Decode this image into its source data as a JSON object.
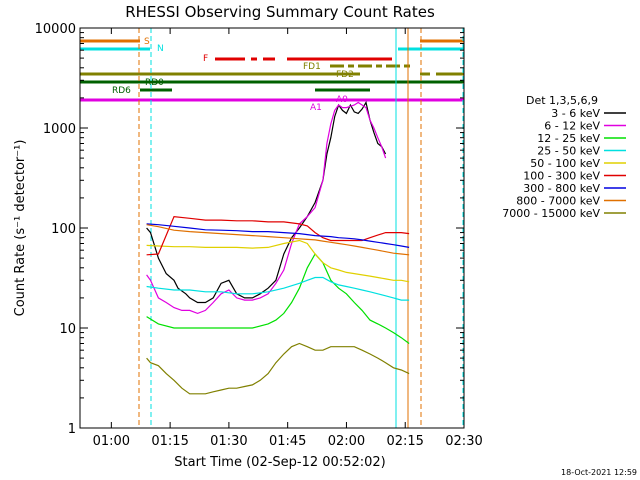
{
  "chart_data": {
    "type": "line",
    "title": "RHESSI Observing Summary Count Rates",
    "xlabel": "Start Time (02-Sep-12 00:52:02)",
    "ylabel": "Count Rate (s⁻¹ detector⁻¹)",
    "x_unit": "minutes after 00:52:02",
    "xlim": [
      0,
      98
    ],
    "ylim": [
      1,
      10000
    ],
    "yscale": "log",
    "x_ticks": [
      {
        "x": 8,
        "label": "01:00"
      },
      {
        "x": 23,
        "label": "01:15"
      },
      {
        "x": 38,
        "label": "01:30"
      },
      {
        "x": 53,
        "label": "01:45"
      },
      {
        "x": 68,
        "label": "02:00"
      },
      {
        "x": 83,
        "label": "02:15"
      },
      {
        "x": 98,
        "label": "02:30"
      }
    ],
    "y_ticks": [
      {
        "y": 1,
        "label": "1"
      },
      {
        "y": 10,
        "label": "10"
      },
      {
        "y": 100,
        "label": "100"
      },
      {
        "y": 1000,
        "label": "1000"
      },
      {
        "y": 10000,
        "label": "10000"
      }
    ],
    "legend_title": "Det 1,3,5,6,9",
    "legend_position": "right",
    "series": [
      {
        "name": "3 - 6 keV",
        "color": "#000000",
        "x": [
          17,
          18,
          20,
          22,
          24,
          25,
          27,
          28,
          30,
          32,
          34,
          36,
          38,
          40,
          42,
          44,
          46,
          48,
          50,
          52,
          54,
          56,
          58,
          60,
          62,
          63,
          64,
          65,
          66,
          67,
          68,
          69,
          70,
          71,
          72,
          73,
          74,
          75,
          76,
          77,
          78
        ],
        "y": [
          100,
          90,
          50,
          35,
          30,
          25,
          22,
          20,
          18,
          18,
          20,
          28,
          30,
          22,
          20,
          20,
          22,
          25,
          30,
          55,
          80,
          100,
          130,
          180,
          300,
          550,
          800,
          1300,
          1700,
          1500,
          1400,
          1700,
          1450,
          1400,
          1550,
          1800,
          1200,
          900,
          700,
          650,
          550
        ]
      },
      {
        "name": "6 - 12 keV",
        "color": "#e000e0",
        "x": [
          17,
          18,
          20,
          22,
          24,
          26,
          28,
          30,
          32,
          34,
          36,
          38,
          40,
          42,
          44,
          46,
          48,
          50,
          52,
          54,
          56,
          58,
          60,
          62,
          63,
          64,
          65,
          66,
          67,
          68,
          69,
          70,
          71,
          72,
          73,
          74,
          75,
          76,
          77,
          78
        ],
        "y": [
          34,
          30,
          20,
          18,
          16,
          15,
          15,
          14,
          15,
          18,
          22,
          24,
          20,
          19,
          19,
          20,
          22,
          28,
          38,
          70,
          110,
          130,
          160,
          300,
          700,
          1100,
          1500,
          1700,
          1600,
          1600,
          1650,
          1700,
          1800,
          1700,
          1600,
          1200,
          1000,
          800,
          650,
          500
        ]
      },
      {
        "name": "12 - 25 keV",
        "color": "#00e000",
        "x": [
          17,
          20,
          24,
          28,
          32,
          36,
          40,
          44,
          48,
          50,
          52,
          54,
          56,
          58,
          60,
          62,
          64,
          66,
          68,
          70,
          72,
          74,
          76,
          78,
          80,
          82,
          84
        ],
        "y": [
          13,
          11,
          10,
          10,
          10,
          10,
          10,
          10,
          11,
          12,
          14,
          18,
          25,
          40,
          55,
          45,
          30,
          25,
          22,
          18,
          15,
          12,
          11,
          10,
          9,
          8,
          7
        ]
      },
      {
        "name": "25 - 50 keV",
        "color": "#00e0e0",
        "x": [
          17,
          20,
          24,
          28,
          32,
          36,
          40,
          44,
          48,
          52,
          56,
          58,
          60,
          62,
          64,
          66,
          68,
          70,
          72,
          74,
          76,
          78,
          80,
          82,
          84
        ],
        "y": [
          26,
          25,
          24,
          24,
          23,
          23,
          22,
          22,
          23,
          25,
          28,
          30,
          32,
          32,
          29,
          27,
          26,
          25,
          24,
          23,
          22,
          21,
          20,
          19,
          19
        ]
      },
      {
        "name": "50 - 100 keV",
        "color": "#e0d000",
        "x": [
          17,
          20,
          24,
          28,
          32,
          36,
          40,
          44,
          48,
          52,
          56,
          58,
          60,
          62,
          64,
          66,
          68,
          70,
          72,
          74,
          76,
          78,
          80,
          82,
          84
        ],
        "y": [
          67,
          66,
          65,
          65,
          64,
          64,
          64,
          63,
          64,
          70,
          75,
          70,
          55,
          45,
          40,
          38,
          36,
          35,
          34,
          33,
          32,
          31,
          30,
          30,
          29
        ]
      },
      {
        "name": "100 - 300 keV",
        "color": "#e00000",
        "x": [
          17,
          20,
          24,
          28,
          32,
          36,
          40,
          44,
          48,
          52,
          56,
          58,
          60,
          62,
          64,
          66,
          68,
          70,
          72,
          74,
          76,
          78,
          80,
          82,
          84
        ],
        "y": [
          54,
          55,
          130,
          125,
          120,
          120,
          118,
          118,
          115,
          115,
          110,
          105,
          90,
          80,
          75,
          75,
          75,
          75,
          75,
          80,
          85,
          90,
          90,
          90,
          88
        ]
      },
      {
        "name": "300 - 800 keV",
        "color": "#0000e0",
        "x": [
          17,
          20,
          24,
          28,
          32,
          36,
          40,
          44,
          48,
          52,
          56,
          58,
          60,
          62,
          64,
          66,
          68,
          70,
          72,
          74,
          76,
          78,
          80,
          82,
          84
        ],
        "y": [
          110,
          108,
          104,
          100,
          96,
          95,
          94,
          92,
          92,
          90,
          88,
          86,
          84,
          83,
          82,
          80,
          79,
          78,
          76,
          74,
          72,
          70,
          68,
          66,
          64
        ]
      },
      {
        "name": "800 - 7000 keV",
        "color": "#e07000",
        "x": [
          17,
          20,
          24,
          28,
          32,
          36,
          40,
          44,
          48,
          52,
          56,
          58,
          60,
          62,
          64,
          66,
          68,
          70,
          72,
          74,
          76,
          78,
          80,
          82,
          84
        ],
        "y": [
          108,
          103,
          95,
          92,
          90,
          88,
          86,
          84,
          82,
          80,
          78,
          77,
          76,
          74,
          72,
          70,
          68,
          66,
          64,
          62,
          60,
          58,
          56,
          55,
          54
        ]
      },
      {
        "name": "7000 - 15000 keV",
        "color": "#808000",
        "x": [
          17,
          18,
          20,
          22,
          24,
          26,
          28,
          30,
          32,
          34,
          36,
          38,
          40,
          42,
          44,
          46,
          48,
          50,
          52,
          54,
          56,
          58,
          60,
          62,
          64,
          66,
          68,
          70,
          72,
          74,
          76,
          78,
          80,
          82,
          84
        ],
        "y": [
          5,
          4.5,
          4.2,
          3.5,
          3,
          2.5,
          2.2,
          2.2,
          2.2,
          2.3,
          2.4,
          2.5,
          2.5,
          2.6,
          2.7,
          3,
          3.5,
          4.5,
          5.5,
          6.5,
          7,
          6.5,
          6,
          6,
          6.5,
          6.5,
          6.5,
          6.5,
          6,
          5.5,
          5,
          4.5,
          4,
          3.8,
          3.5
        ]
      }
    ],
    "flag_labels": [
      "S",
      "N",
      "F",
      "FD1",
      "FD2",
      "RD0",
      "RD6",
      "A1",
      "A0"
    ],
    "footer_date": "18-Oct-2021 12:59"
  }
}
